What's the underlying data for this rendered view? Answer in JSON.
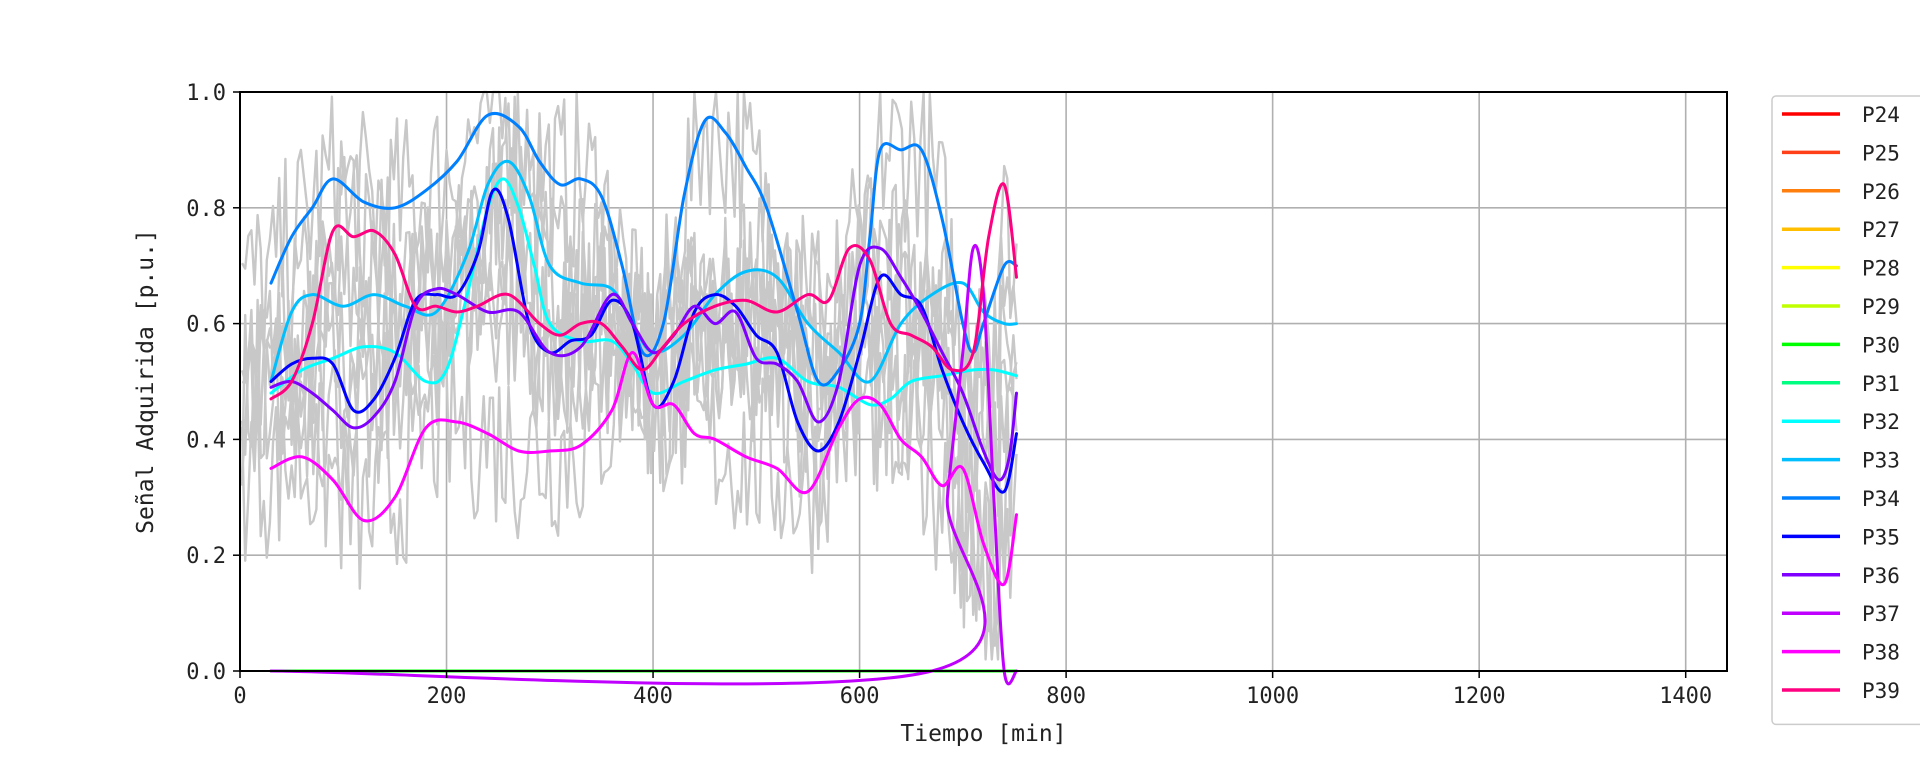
{
  "chart_data": {
    "type": "line",
    "title": "",
    "xlabel": "Tiempo [min]",
    "ylabel": "Señal Adquirida [p.u.]",
    "xlim": [
      0,
      1440
    ],
    "ylim": [
      0,
      1.0
    ],
    "xticks": [
      "0",
      "200",
      "400",
      "600",
      "800",
      "1000",
      "1200",
      "1400"
    ],
    "yticks": [
      "0.0",
      "0.2",
      "0.4",
      "0.6",
      "0.8",
      "1.0"
    ],
    "grid": true,
    "legend_position": "right-outside",
    "raw_signal_color": "#c8c8c8",
    "series": [
      {
        "name": "P24",
        "color": "#ff0000",
        "x": [],
        "y": []
      },
      {
        "name": "P25",
        "color": "#ff4019",
        "x": [],
        "y": []
      },
      {
        "name": "P26",
        "color": "#ff7f0e",
        "x": [],
        "y": []
      },
      {
        "name": "P27",
        "color": "#ffbf00",
        "x": [],
        "y": []
      },
      {
        "name": "P28",
        "color": "#ffff00",
        "x": [],
        "y": []
      },
      {
        "name": "P29",
        "color": "#bfff00",
        "x": [],
        "y": []
      },
      {
        "name": "P30",
        "color": "#00ff00",
        "x": [
          30,
          670,
          752
        ],
        "y": [
          0,
          0,
          0
        ]
      },
      {
        "name": "P31",
        "color": "#00ff80",
        "x": [],
        "y": []
      },
      {
        "name": "P32",
        "color": "#00ffff",
        "x": [
          30,
          60,
          90,
          120,
          150,
          180,
          200,
          220,
          240,
          255,
          270,
          285,
          300,
          330,
          360,
          380,
          400,
          430,
          460,
          490,
          520,
          550,
          580,
          610,
          630,
          650,
          680,
          710,
          730,
          752
        ],
        "y": [
          0.48,
          0.52,
          0.54,
          0.56,
          0.55,
          0.5,
          0.52,
          0.65,
          0.8,
          0.85,
          0.8,
          0.7,
          0.6,
          0.57,
          0.57,
          0.53,
          0.48,
          0.5,
          0.52,
          0.53,
          0.54,
          0.5,
          0.49,
          0.46,
          0.47,
          0.5,
          0.51,
          0.52,
          0.52,
          0.51
        ]
      },
      {
        "name": "P33",
        "color": "#00bfff",
        "x": [
          30,
          50,
          70,
          100,
          130,
          160,
          190,
          220,
          240,
          260,
          280,
          300,
          330,
          360,
          380,
          400,
          430,
          460,
          490,
          520,
          550,
          580,
          610,
          640,
          670,
          700,
          720,
          740,
          752
        ],
        "y": [
          0.5,
          0.62,
          0.65,
          0.63,
          0.65,
          0.63,
          0.62,
          0.72,
          0.84,
          0.88,
          0.82,
          0.7,
          0.67,
          0.66,
          0.6,
          0.55,
          0.58,
          0.65,
          0.69,
          0.68,
          0.6,
          0.55,
          0.5,
          0.6,
          0.65,
          0.67,
          0.62,
          0.6,
          0.6
        ]
      },
      {
        "name": "P34",
        "color": "#0080ff",
        "x": [
          30,
          50,
          70,
          90,
          120,
          150,
          180,
          210,
          240,
          270,
          290,
          310,
          330,
          350,
          370,
          390,
          410,
          430,
          450,
          470,
          490,
          510,
          540,
          560,
          580,
          600,
          610,
          620,
          640,
          660,
          680,
          700,
          710,
          720,
          740,
          752
        ],
        "y": [
          0.67,
          0.75,
          0.8,
          0.85,
          0.81,
          0.8,
          0.83,
          0.88,
          0.96,
          0.94,
          0.88,
          0.84,
          0.85,
          0.82,
          0.7,
          0.55,
          0.6,
          0.82,
          0.95,
          0.93,
          0.87,
          0.8,
          0.62,
          0.5,
          0.52,
          0.6,
          0.75,
          0.9,
          0.9,
          0.9,
          0.78,
          0.6,
          0.55,
          0.6,
          0.7,
          0.7
        ]
      },
      {
        "name": "P35",
        "color": "#0000ff",
        "x": [
          30,
          50,
          70,
          90,
          110,
          130,
          150,
          170,
          190,
          210,
          230,
          245,
          260,
          280,
          300,
          320,
          340,
          360,
          380,
          400,
          420,
          440,
          460,
          480,
          500,
          520,
          540,
          560,
          580,
          600,
          620,
          640,
          660,
          680,
          700,
          720,
          740,
          752
        ],
        "y": [
          0.5,
          0.53,
          0.54,
          0.53,
          0.45,
          0.47,
          0.54,
          0.64,
          0.65,
          0.65,
          0.72,
          0.83,
          0.78,
          0.6,
          0.55,
          0.57,
          0.58,
          0.64,
          0.6,
          0.46,
          0.5,
          0.62,
          0.65,
          0.63,
          0.58,
          0.55,
          0.43,
          0.38,
          0.43,
          0.55,
          0.68,
          0.65,
          0.63,
          0.52,
          0.43,
          0.36,
          0.31,
          0.41
        ]
      },
      {
        "name": "P36",
        "color": "#8000ff",
        "x": [
          30,
          50,
          70,
          90,
          110,
          130,
          150,
          170,
          190,
          210,
          240,
          270,
          300,
          330,
          360,
          380,
          400,
          420,
          440,
          460,
          480,
          500,
          520,
          540,
          560,
          580,
          600,
          620,
          640,
          660,
          680,
          700,
          720,
          735,
          745,
          752
        ],
        "y": [
          0.49,
          0.5,
          0.48,
          0.45,
          0.42,
          0.44,
          0.5,
          0.63,
          0.66,
          0.65,
          0.62,
          0.62,
          0.55,
          0.56,
          0.65,
          0.6,
          0.55,
          0.58,
          0.63,
          0.6,
          0.62,
          0.54,
          0.53,
          0.5,
          0.43,
          0.5,
          0.7,
          0.73,
          0.68,
          0.62,
          0.55,
          0.48,
          0.38,
          0.33,
          0.37,
          0.48
        ]
      },
      {
        "name": "P37",
        "color": "#bf00ff",
        "x": [
          30,
          670,
          685,
          700,
          710,
          720,
          730,
          740,
          752
        ],
        "y": [
          0,
          0,
          0.3,
          0.55,
          0.73,
          0.65,
          0.3,
          0,
          0
        ]
      },
      {
        "name": "P38",
        "color": "#ff00ff",
        "x": [
          30,
          60,
          90,
          120,
          150,
          180,
          210,
          240,
          270,
          300,
          330,
          360,
          380,
          400,
          420,
          440,
          460,
          490,
          520,
          550,
          580,
          600,
          620,
          640,
          660,
          680,
          700,
          720,
          740,
          752
        ],
        "y": [
          0.35,
          0.37,
          0.33,
          0.26,
          0.3,
          0.42,
          0.43,
          0.41,
          0.38,
          0.38,
          0.39,
          0.45,
          0.55,
          0.46,
          0.46,
          0.41,
          0.4,
          0.37,
          0.35,
          0.31,
          0.42,
          0.47,
          0.46,
          0.4,
          0.37,
          0.32,
          0.35,
          0.22,
          0.15,
          0.27
        ]
      },
      {
        "name": "P39",
        "color": "#ff0080",
        "x": [
          30,
          50,
          70,
          90,
          110,
          130,
          150,
          170,
          190,
          210,
          230,
          260,
          290,
          310,
          330,
          350,
          370,
          390,
          410,
          430,
          460,
          490,
          520,
          550,
          570,
          590,
          610,
          630,
          650,
          670,
          690,
          710,
          725,
          740,
          752
        ],
        "y": [
          0.47,
          0.5,
          0.6,
          0.76,
          0.75,
          0.76,
          0.72,
          0.63,
          0.63,
          0.62,
          0.63,
          0.65,
          0.6,
          0.58,
          0.6,
          0.6,
          0.56,
          0.52,
          0.56,
          0.6,
          0.63,
          0.64,
          0.62,
          0.65,
          0.64,
          0.73,
          0.71,
          0.6,
          0.58,
          0.56,
          0.52,
          0.55,
          0.75,
          0.84,
          0.68
        ]
      }
    ]
  }
}
